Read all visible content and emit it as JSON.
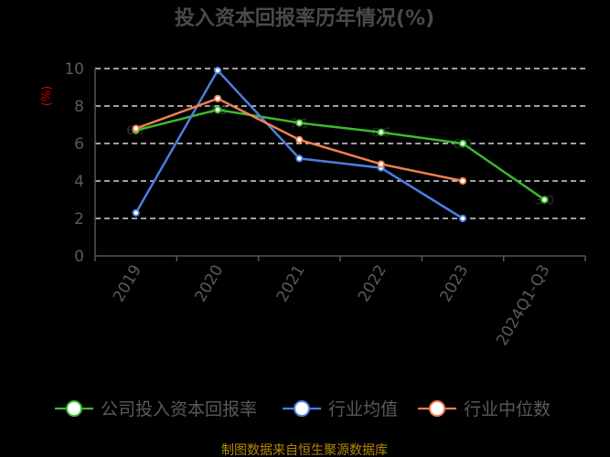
{
  "chart_data": {
    "type": "line",
    "title": "投入资本回报率历年情况(%)",
    "ylabel": "(%)",
    "categories": [
      "2019",
      "2020",
      "2021",
      "2022",
      "2023",
      "2024Q1-Q3"
    ],
    "ylim": [
      0,
      10
    ],
    "yticks": [
      0,
      2,
      4,
      6,
      8,
      10
    ],
    "grid": true,
    "legend_position": "bottom",
    "series": [
      {
        "name": "公司投入资本回报率",
        "color": "#3cb92e",
        "values": [
          6.7,
          7.8,
          7.1,
          6.6,
          6.0,
          3.0
        ]
      },
      {
        "name": "行业均值",
        "color": "#4a7fe0",
        "values": [
          2.3,
          9.9,
          5.2,
          4.7,
          2.0,
          null
        ]
      },
      {
        "name": "行业中位数",
        "color": "#f08050",
        "values": [
          6.8,
          8.4,
          6.2,
          4.9,
          4.0,
          null
        ]
      }
    ],
    "data_labels": [
      "6.7",
      "7.8",
      "7.1",
      "6.6",
      "6.0",
      "3.0"
    ],
    "source": "制图数据来自恒生聚源数据库"
  }
}
